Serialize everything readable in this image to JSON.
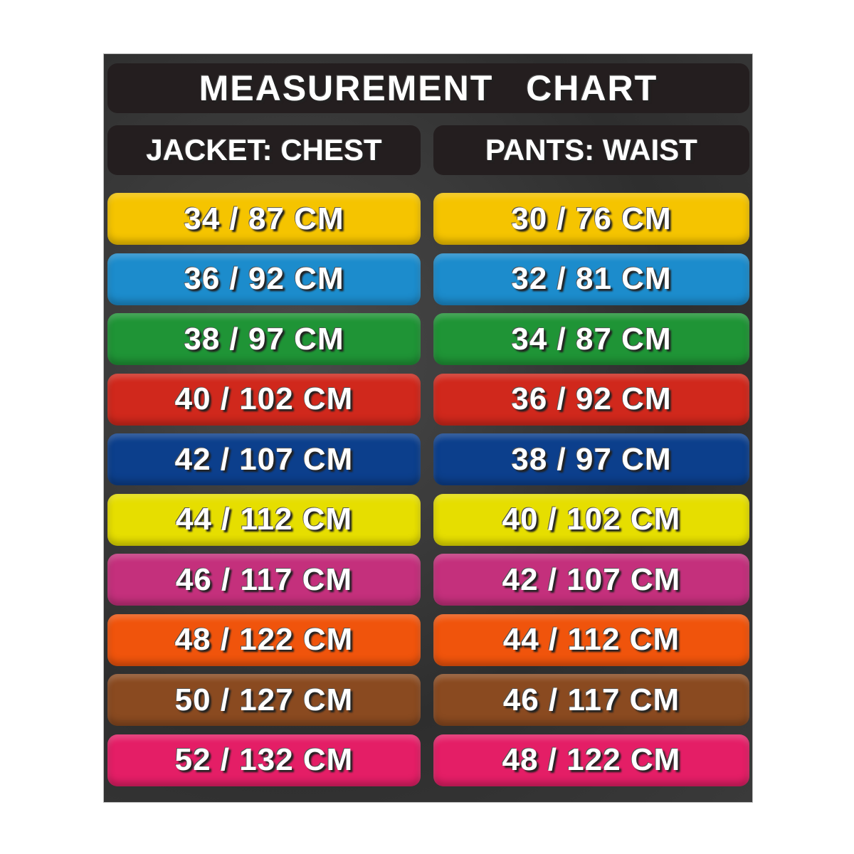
{
  "title": "MEASUREMENT  CHART",
  "headers": {
    "jacket": "JACKET: CHEST",
    "pants": "PANTS: WAIST"
  },
  "rows": [
    {
      "jacket": "34 / 87 CM",
      "pants": "30 / 76 CM",
      "color": "#f5c400"
    },
    {
      "jacket": "36 / 92 CM",
      "pants": "32 / 81 CM",
      "color": "#1c8ccc"
    },
    {
      "jacket": "38 / 97 CM",
      "pants": "34 / 87 CM",
      "color": "#1f9436"
    },
    {
      "jacket": "40 / 102 CM",
      "pants": "36 / 92 CM",
      "color": "#d0281c"
    },
    {
      "jacket": "42 / 107 CM",
      "pants": "38 / 97 CM",
      "color": "#0c3f8c"
    },
    {
      "jacket": "44 / 112 CM",
      "pants": "40 / 102 CM",
      "color": "#e6de00"
    },
    {
      "jacket": "46 / 117 CM",
      "pants": "42 / 107 CM",
      "color": "#c4307c"
    },
    {
      "jacket": "48 / 122 CM",
      "pants": "44 / 112 CM",
      "color": "#f0540c"
    },
    {
      "jacket": "50 / 127 CM",
      "pants": "46 / 117 CM",
      "color": "#8a4a20"
    },
    {
      "jacket": "52 / 132 CM",
      "pants": "48 / 122 CM",
      "color": "#e41e66"
    }
  ]
}
